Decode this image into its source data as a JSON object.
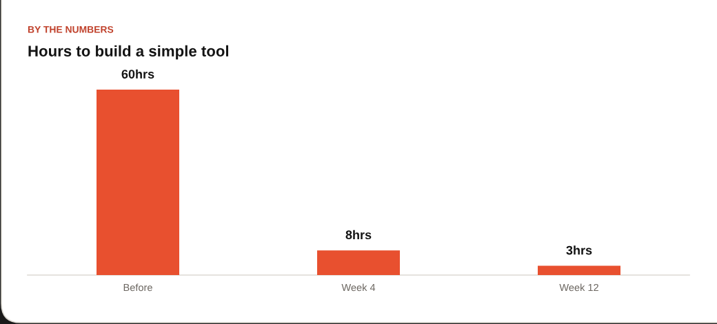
{
  "chart_data": {
    "type": "bar",
    "subtitle": "BY THE NUMBERS",
    "title": "Hours to build a simple tool",
    "categories": [
      "Before",
      "Week 4",
      "Week 12"
    ],
    "values": [
      60,
      8,
      3
    ],
    "value_labels": [
      "60hrs",
      "8hrs",
      "3hrs"
    ],
    "color": "#e8502f"
  }
}
